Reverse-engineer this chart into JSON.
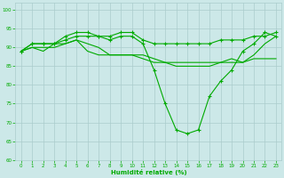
{
  "xlabel": "Humidité relative (%)",
  "xlim": [
    -0.5,
    23.5
  ],
  "ylim": [
    60,
    102
  ],
  "yticks": [
    60,
    65,
    70,
    75,
    80,
    85,
    90,
    95,
    100
  ],
  "xticks": [
    0,
    1,
    2,
    3,
    4,
    5,
    6,
    7,
    8,
    9,
    10,
    11,
    12,
    13,
    14,
    15,
    16,
    17,
    18,
    19,
    20,
    21,
    22,
    23
  ],
  "background_color": "#cce8e8",
  "grid_color": "#aacccc",
  "line_color": "#00aa00",
  "line1": [
    89,
    90,
    89,
    91,
    91,
    92,
    91,
    90,
    88,
    88,
    88,
    87,
    86,
    86,
    86,
    86,
    86,
    86,
    86,
    87,
    86,
    88,
    91,
    93
  ],
  "line2": [
    89,
    90,
    90,
    90,
    91,
    92,
    89,
    88,
    88,
    88,
    88,
    88,
    87,
    86,
    85,
    85,
    85,
    85,
    86,
    86,
    86,
    87,
    87,
    87
  ],
  "line3": [
    89,
    91,
    91,
    91,
    93,
    94,
    94,
    93,
    93,
    94,
    94,
    92,
    91,
    91,
    91,
    91,
    91,
    91,
    92,
    92,
    92,
    93,
    93,
    94
  ],
  "line4": [
    89,
    91,
    91,
    91,
    92,
    93,
    93,
    93,
    92,
    93,
    93,
    91,
    84,
    75,
    68,
    67,
    68,
    77,
    81,
    84,
    89,
    91,
    94,
    93
  ]
}
